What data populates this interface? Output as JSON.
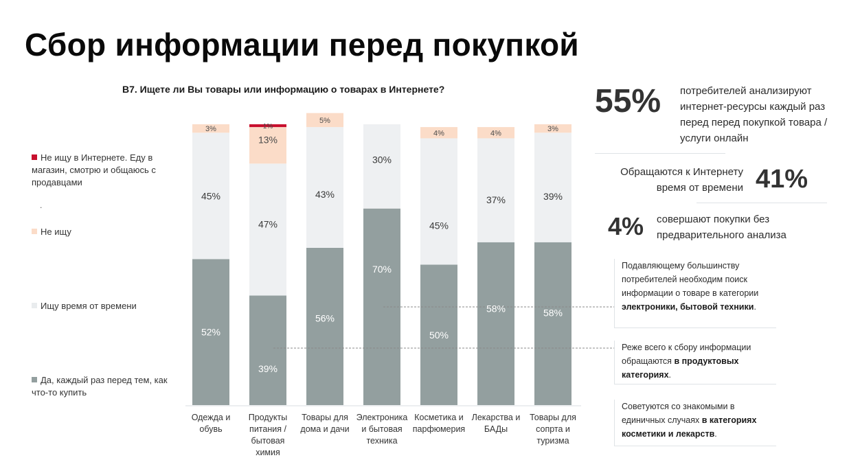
{
  "page": {
    "title": "Сбор информации перед покупкой"
  },
  "legend": {
    "items": [
      {
        "label": "Не ищу в Интернете. Еду в магазин, смотрю и общаюсь с продавцами",
        "color": "#c8102e"
      },
      {
        "label": "Не ищу",
        "color": "#fbdcc8"
      },
      {
        "label": "Ищу время от времени",
        "color": "#eef0f2"
      },
      {
        "label": "Да, каждый раз перед тем, как что-то купить",
        "color": "#939f9f"
      }
    ],
    "dot": "."
  },
  "chart_data": {
    "type": "bar",
    "stacked": true,
    "title": "B7. Ищете ли Вы товары или информацию о товарах в Интернете?",
    "xlabel": "",
    "ylabel": "",
    "ylim": [
      0,
      100
    ],
    "grid": false,
    "legend_position": "left",
    "categories": [
      "Одежда и обувь",
      "Продукты питания / бытовая химия",
      "Товары для дома и дачи",
      "Электроника и бытовая техника",
      "Косметика и парфюмерия",
      "Лекарства и БАДы",
      "Товары для сопрта и туризма"
    ],
    "series": [
      {
        "name": "Да, каждый раз перед тем, как что-то купить",
        "color": "#939f9f",
        "label_color": "#ffffff",
        "values": [
          52,
          39,
          56,
          70,
          50,
          58,
          58
        ],
        "labels": [
          "52%",
          "39%",
          "56%",
          "70%",
          "50%",
          "58%",
          "58%"
        ]
      },
      {
        "name": "Ищу время от времени",
        "color": "#eef0f2",
        "label_color": "#3a3a3a",
        "values": [
          45,
          47,
          43,
          30,
          45,
          37,
          39
        ],
        "labels": [
          "45%",
          "47%",
          "43%",
          "30%",
          "45%",
          "37%",
          "39%"
        ]
      },
      {
        "name": "Не ищу",
        "color": "#fbdcc8",
        "label_color": "#4a4a4a",
        "values": [
          3,
          13,
          5,
          0,
          4,
          4,
          3
        ],
        "labels": [
          "3%",
          "13%",
          "5%",
          "",
          "4%",
          "4%",
          "3%"
        ]
      },
      {
        "name": "Не ищу в Интернете. Еду в магазин, смотрю и общаюсь с продавцами",
        "color": "#c8102e",
        "label_color": "#4a4a4a",
        "values": [
          0,
          1,
          0,
          0,
          0,
          0,
          0
        ],
        "labels": [
          "",
          "1%",
          "",
          "",
          "",
          "",
          ""
        ]
      }
    ]
  },
  "stats": {
    "s1": {
      "value": "55%",
      "text": "потребителей анализируют интернет-ресурсы каждый раз перед перед покупкой товара / услуги онлайн"
    },
    "s2": {
      "value": "41%",
      "text_line1": "Обращаются к Интернету",
      "text_line2": "время от времени"
    },
    "s3": {
      "value": "4%",
      "text_line1": "совершают покупки без",
      "text_line2": "предварительного анализа"
    }
  },
  "callouts": {
    "c1": {
      "text": "Подавляющему большинству потребителей необходим поиск информации о товаре в категории",
      "bold": "электроники, бытовой техники",
      "end": "."
    },
    "c2": {
      "text": "Реже всего к сбору информации обращаются",
      "bold": "в продуктовых категориях",
      "end": "."
    },
    "c3": {
      "text": "Советуются со знакомыми в единичных случаях",
      "bold": "в категориях косметики и лекарств",
      "end": "."
    }
  },
  "colors": {
    "accent_red": "#c8102e",
    "bar_gray": "#939f9f",
    "peach": "#fbdcc8",
    "light": "#eef0f2"
  }
}
